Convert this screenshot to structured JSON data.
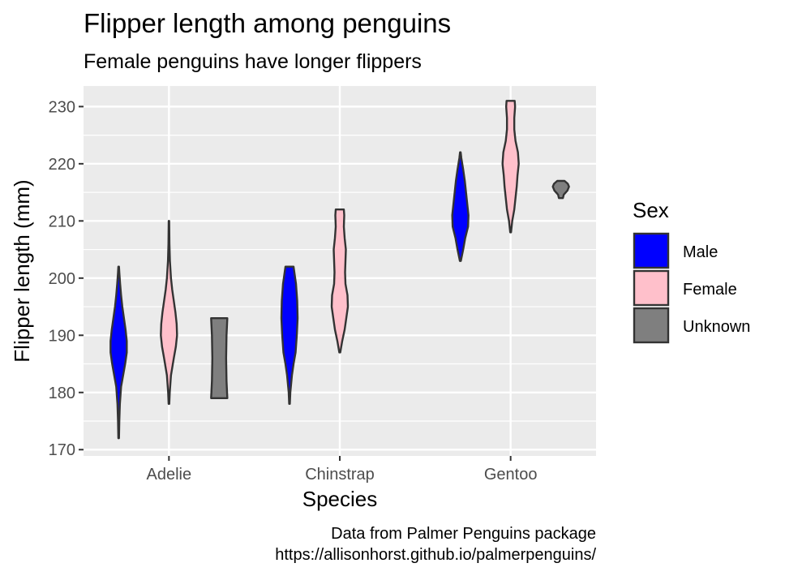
{
  "chart_data": {
    "type": "violin",
    "title": "Flipper length among penguins",
    "subtitle": "Female penguins have longer flippers",
    "xlabel": "Species",
    "ylabel": "Flipper length (mm)",
    "caption_lines": [
      "Data from Palmer Penguins package",
      "https://allisonhorst.github.io/palmerpenguins/"
    ],
    "categories": [
      "Adelie",
      "Chinstrap",
      "Gentoo"
    ],
    "ylim": [
      168.9,
      233.6
    ],
    "yticks": [
      170,
      180,
      190,
      200,
      210,
      220,
      230
    ],
    "grid": true,
    "legend": {
      "title": "Sex",
      "position": "right",
      "entries": [
        {
          "label": "Male",
          "color": "#0000ff"
        },
        {
          "label": "Female",
          "color": "#ffc0cb"
        },
        {
          "label": "Unknown",
          "color": "#7f7f7f"
        }
      ]
    },
    "violins": [
      {
        "species": "Adelie",
        "sex": "Male",
        "color": "#0000ff",
        "slot": 0,
        "min": 172,
        "max": 202,
        "profile": [
          [
            172,
            0.04
          ],
          [
            175,
            0.08
          ],
          [
            178,
            0.15
          ],
          [
            181,
            0.3
          ],
          [
            183,
            0.55
          ],
          [
            185,
            0.8
          ],
          [
            187,
            1.0
          ],
          [
            189,
            1.0
          ],
          [
            191,
            0.85
          ],
          [
            193,
            0.65
          ],
          [
            195,
            0.45
          ],
          [
            197,
            0.3
          ],
          [
            199,
            0.18
          ],
          [
            201,
            0.08
          ],
          [
            202,
            0.04
          ]
        ]
      },
      {
        "species": "Adelie",
        "sex": "Female",
        "color": "#ffc0cb",
        "slot": 1,
        "min": 178,
        "max": 210,
        "profile": [
          [
            178,
            0.04
          ],
          [
            180,
            0.1
          ],
          [
            183,
            0.25
          ],
          [
            186,
            0.6
          ],
          [
            188,
            0.85
          ],
          [
            190,
            1.0
          ],
          [
            192,
            0.95
          ],
          [
            194,
            0.8
          ],
          [
            196,
            0.6
          ],
          [
            198,
            0.4
          ],
          [
            200,
            0.25
          ],
          [
            203,
            0.12
          ],
          [
            206,
            0.06
          ],
          [
            210,
            0.03
          ]
        ]
      },
      {
        "species": "Adelie",
        "sex": "Unknown",
        "color": "#7f7f7f",
        "slot": 2,
        "min": 179,
        "max": 193,
        "profile": [
          [
            179,
            1.0
          ],
          [
            182,
            0.9
          ],
          [
            186,
            0.85
          ],
          [
            190,
            0.9
          ],
          [
            193,
            1.0
          ]
        ]
      },
      {
        "species": "Chinstrap",
        "sex": "Male",
        "color": "#0000ff",
        "slot": 0,
        "min": 178,
        "max": 202,
        "profile": [
          [
            178,
            0.04
          ],
          [
            180,
            0.1
          ],
          [
            183,
            0.3
          ],
          [
            185,
            0.5
          ],
          [
            187,
            0.75
          ],
          [
            190,
            0.9
          ],
          [
            193,
            1.0
          ],
          [
            196,
            0.95
          ],
          [
            199,
            0.8
          ],
          [
            201,
            0.6
          ],
          [
            202,
            0.5
          ]
        ]
      },
      {
        "species": "Chinstrap",
        "sex": "Female",
        "color": "#ffc0cb",
        "slot": 1,
        "min": 187,
        "max": 212,
        "profile": [
          [
            187,
            0.06
          ],
          [
            189,
            0.3
          ],
          [
            191,
            0.6
          ],
          [
            193,
            0.8
          ],
          [
            195,
            1.0
          ],
          [
            197,
            0.95
          ],
          [
            199,
            0.7
          ],
          [
            201,
            0.65
          ],
          [
            203,
            0.7
          ],
          [
            205,
            0.75
          ],
          [
            207,
            0.6
          ],
          [
            209,
            0.5
          ],
          [
            211,
            0.55
          ],
          [
            212,
            0.5
          ]
        ]
      },
      {
        "species": "Gentoo",
        "sex": "Male",
        "color": "#0000ff",
        "slot": 0,
        "min": 203,
        "max": 222,
        "profile": [
          [
            203,
            0.06
          ],
          [
            205,
            0.35
          ],
          [
            207,
            0.6
          ],
          [
            209,
            0.95
          ],
          [
            211,
            1.0
          ],
          [
            213,
            0.85
          ],
          [
            215,
            0.7
          ],
          [
            217,
            0.55
          ],
          [
            219,
            0.35
          ],
          [
            221,
            0.12
          ],
          [
            222,
            0.04
          ]
        ]
      },
      {
        "species": "Gentoo",
        "sex": "Female",
        "color": "#ffc0cb",
        "slot": 1,
        "min": 208,
        "max": 231,
        "profile": [
          [
            208,
            0.05
          ],
          [
            210,
            0.2
          ],
          [
            212,
            0.45
          ],
          [
            214,
            0.6
          ],
          [
            216,
            0.75
          ],
          [
            218,
            0.85
          ],
          [
            220,
            1.0
          ],
          [
            222,
            0.9
          ],
          [
            224,
            0.6
          ],
          [
            226,
            0.45
          ],
          [
            228,
            0.45
          ],
          [
            230,
            0.55
          ],
          [
            231,
            0.5
          ]
        ]
      },
      {
        "species": "Gentoo",
        "sex": "Unknown",
        "color": "#7f7f7f",
        "slot": 2,
        "min": 214,
        "max": 217,
        "profile": [
          [
            214,
            0.25
          ],
          [
            214.6,
            0.35
          ],
          [
            215.3,
            0.8
          ],
          [
            216,
            1.0
          ],
          [
            216.5,
            0.85
          ],
          [
            217,
            0.45
          ]
        ]
      }
    ]
  }
}
